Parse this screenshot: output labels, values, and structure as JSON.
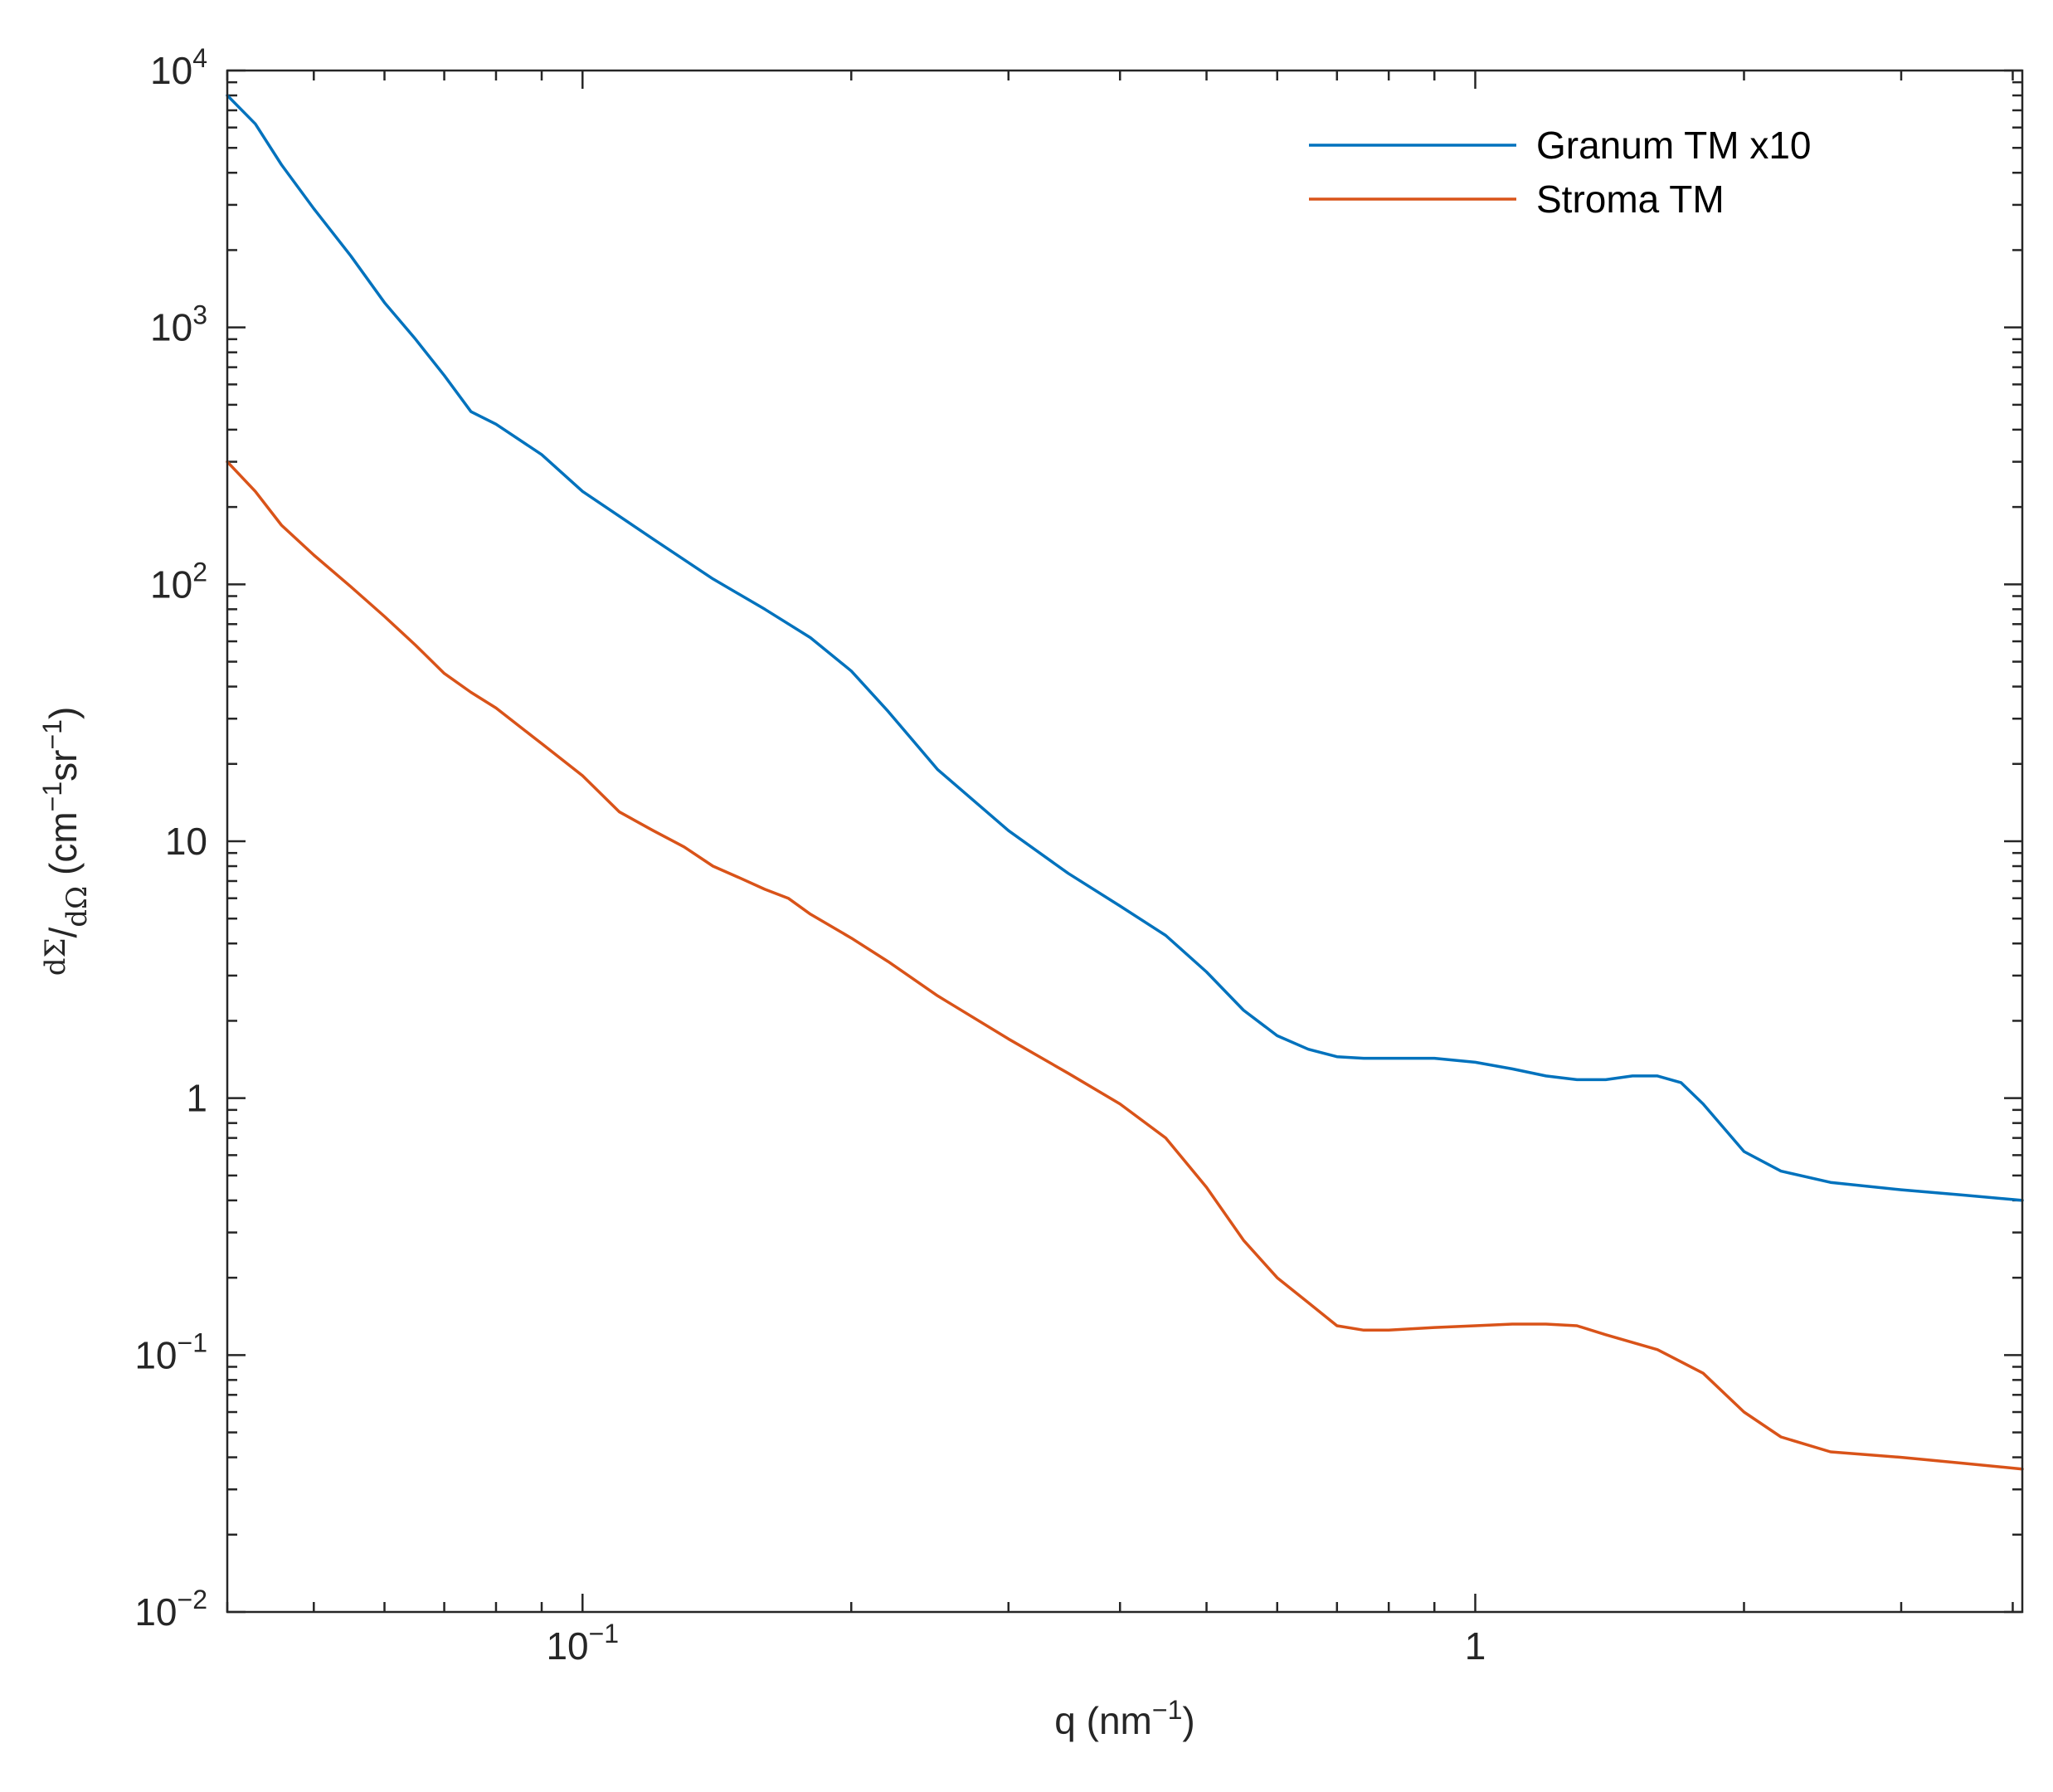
{
  "chart_data": {
    "type": "line",
    "title": "",
    "xscale": "log",
    "yscale": "log",
    "xlim": [
      0.04,
      4.1
    ],
    "ylim": [
      0.01,
      10000
    ],
    "xlabel": {
      "prefix": "q (nm",
      "sup": "−1",
      "suffix": ")"
    },
    "ylabel": {
      "num": "dΣ",
      "slash": "/",
      "den": "dΩ",
      "unit_open": " (cm",
      "sup1": "−1",
      "mid": "sr",
      "sup2": "−1",
      "unit_close": ")"
    },
    "x_major_ticks": [
      {
        "value": 0.1,
        "base": "10",
        "exp": "−1"
      },
      {
        "value": 1,
        "label": "1"
      }
    ],
    "x_minor_ticks": [
      0.04,
      0.05,
      0.06,
      0.07,
      0.08,
      0.09,
      0.2,
      0.3,
      0.4,
      0.5,
      0.6,
      0.7,
      0.8,
      0.9,
      2,
      3,
      4
    ],
    "y_major_ticks": [
      {
        "value": 0.01,
        "base": "10",
        "exp": "−2"
      },
      {
        "value": 0.1,
        "base": "10",
        "exp": "−1"
      },
      {
        "value": 1,
        "label": "1"
      },
      {
        "value": 10,
        "label": "10"
      },
      {
        "value": 100,
        "base": "10",
        "exp": "2"
      },
      {
        "value": 1000,
        "base": "10",
        "exp": "3"
      },
      {
        "value": 10000,
        "base": "10",
        "exp": "4"
      }
    ],
    "legend_position": "top-right",
    "series": [
      {
        "name": "Granum TM x10",
        "color": "#0072BD",
        "x": [
          0.04,
          0.043,
          0.046,
          0.05,
          0.055,
          0.06,
          0.065,
          0.07,
          0.075,
          0.08,
          0.09,
          0.1,
          0.12,
          0.14,
          0.16,
          0.18,
          0.2,
          0.22,
          0.25,
          0.3,
          0.35,
          0.4,
          0.45,
          0.5,
          0.55,
          0.6,
          0.65,
          0.7,
          0.75,
          0.8,
          0.9,
          1.0,
          1.1,
          1.2,
          1.3,
          1.4,
          1.5,
          1.6,
          1.7,
          1.8,
          2.0,
          2.2,
          2.5,
          3.0,
          3.5,
          4.1
        ],
        "y": [
          8000,
          6200,
          4300,
          2900,
          1900,
          1250,
          900,
          650,
          470,
          420,
          320,
          230,
          150,
          105,
          80,
          62,
          46,
          32,
          19,
          11,
          7.5,
          5.6,
          4.3,
          3.1,
          2.2,
          1.75,
          1.55,
          1.45,
          1.43,
          1.43,
          1.43,
          1.38,
          1.3,
          1.22,
          1.18,
          1.18,
          1.22,
          1.22,
          1.15,
          0.95,
          0.62,
          0.52,
          0.47,
          0.44,
          0.42,
          0.4
        ]
      },
      {
        "name": "Stroma TM",
        "color": "#D95319",
        "x": [
          0.04,
          0.043,
          0.046,
          0.05,
          0.055,
          0.06,
          0.065,
          0.07,
          0.075,
          0.08,
          0.085,
          0.09,
          0.1,
          0.11,
          0.12,
          0.13,
          0.14,
          0.15,
          0.16,
          0.17,
          0.18,
          0.2,
          0.22,
          0.25,
          0.3,
          0.35,
          0.4,
          0.45,
          0.5,
          0.55,
          0.6,
          0.65,
          0.7,
          0.75,
          0.8,
          0.9,
          1.0,
          1.1,
          1.2,
          1.3,
          1.4,
          1.6,
          1.8,
          2.0,
          2.2,
          2.5,
          3.0,
          3.5,
          4.1
        ],
        "y": [
          300,
          230,
          170,
          130,
          98,
          75,
          58,
          45,
          38,
          33,
          28,
          24,
          18,
          13,
          11,
          9.5,
          8,
          7.2,
          6.5,
          6.0,
          5.2,
          4.2,
          3.4,
          2.5,
          1.7,
          1.25,
          0.95,
          0.7,
          0.45,
          0.28,
          0.2,
          0.16,
          0.13,
          0.125,
          0.125,
          0.128,
          0.13,
          0.132,
          0.132,
          0.13,
          0.12,
          0.105,
          0.085,
          0.06,
          0.048,
          0.042,
          0.04,
          0.038,
          0.036
        ]
      }
    ]
  }
}
